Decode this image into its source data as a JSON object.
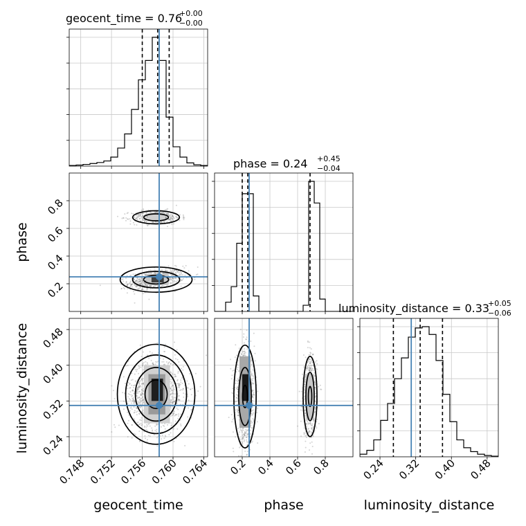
{
  "chart_data": {
    "type": "corner",
    "titles": {
      "geocent_time": {
        "text": "geocent_time = 0.76",
        "plus": "+0.00",
        "minus": "−0.00"
      },
      "phase": {
        "text": "phase = 0.24",
        "plus": "+0.45",
        "minus": "−0.04"
      },
      "luminosity_distance": {
        "text": "luminosity_distance = 0.33",
        "plus": "+0.05",
        "minus": "−0.06"
      }
    },
    "axis_labels": {
      "geocent_time": "geocent_time",
      "phase": "phase",
      "luminosity_distance": "luminosity_distance"
    },
    "ranges": {
      "geocent_time": [
        0.7465,
        0.7645
      ],
      "phase": [
        0.0,
        1.0
      ],
      "luminosity_distance": [
        0.195,
        0.505
      ]
    },
    "ticks": {
      "geocent_time": [
        "0.748",
        "0.752",
        "0.756",
        "0.760",
        "0.764"
      ],
      "phase": [
        "0.2",
        "0.4",
        "0.6",
        "0.8"
      ],
      "luminosity_distance": [
        "0.24",
        "0.32",
        "0.40",
        "0.48"
      ]
    },
    "truths": {
      "geocent_time": 0.7582,
      "phase": 0.25,
      "luminosity_distance": 0.31
    },
    "quantiles": {
      "geocent_time": [
        0.756,
        0.758,
        0.7595
      ],
      "phase": [
        0.2,
        0.24,
        0.69
      ],
      "luminosity_distance": [
        0.27,
        0.33,
        0.38
      ]
    },
    "hist_geocent_time": {
      "edges_start": 0.7465,
      "bin_width": 0.0009,
      "counts": [
        0.5,
        0.8,
        1.3,
        2,
        2.8,
        4,
        7,
        14,
        25,
        44,
        67,
        82,
        100,
        82,
        38,
        15,
        7,
        2.5,
        1,
        0.5
      ]
    },
    "hist_phase": {
      "edges_start": 0.0,
      "bin_width": 0.04,
      "counts": [
        0,
        0,
        3,
        8,
        22,
        38,
        38,
        5,
        0,
        0,
        0,
        0,
        0,
        0,
        0,
        0,
        2,
        42,
        35,
        4,
        0,
        0,
        0,
        0,
        0
      ]
    },
    "hist_luminosity_distance": {
      "edges_start": 0.195,
      "bin_width": 0.0155,
      "counts": [
        2,
        5,
        13,
        28,
        41,
        60,
        76,
        92,
        99,
        100,
        94,
        74,
        48,
        27,
        13,
        7,
        4,
        2,
        1,
        0.5
      ]
    }
  }
}
